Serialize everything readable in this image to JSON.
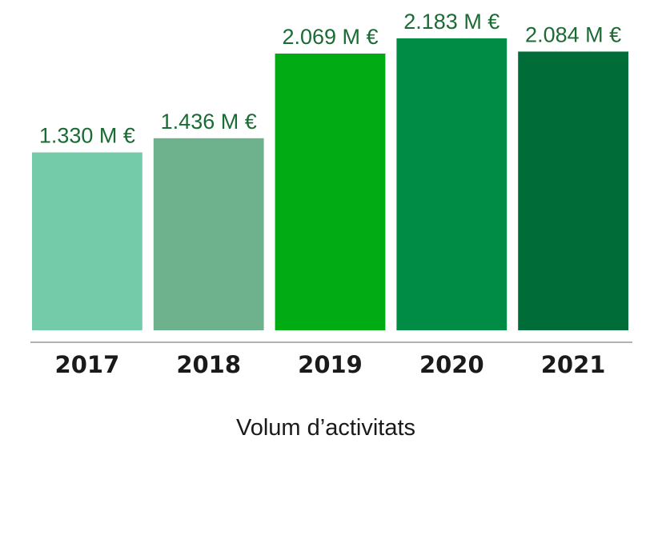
{
  "chart_data": {
    "type": "bar",
    "categories": [
      "2017",
      "2018",
      "2019",
      "2020",
      "2021"
    ],
    "values": [
      1330,
      1436,
      2069,
      2183,
      2084
    ],
    "value_labels": [
      "1.330 M €",
      "1.436 M €",
      "2.069 M €",
      "2.183 M €",
      "2.084 M €"
    ],
    "unit": "M €",
    "colors": [
      "#74cbaa",
      "#6db18d",
      "#00ab14",
      "#008c44",
      "#006d39"
    ],
    "label_color": "#1a6b34",
    "xlabel": "Volum d’activitats",
    "ylabel": "",
    "ylim": [
      0,
      2350
    ],
    "grid": false,
    "legend": "none"
  }
}
